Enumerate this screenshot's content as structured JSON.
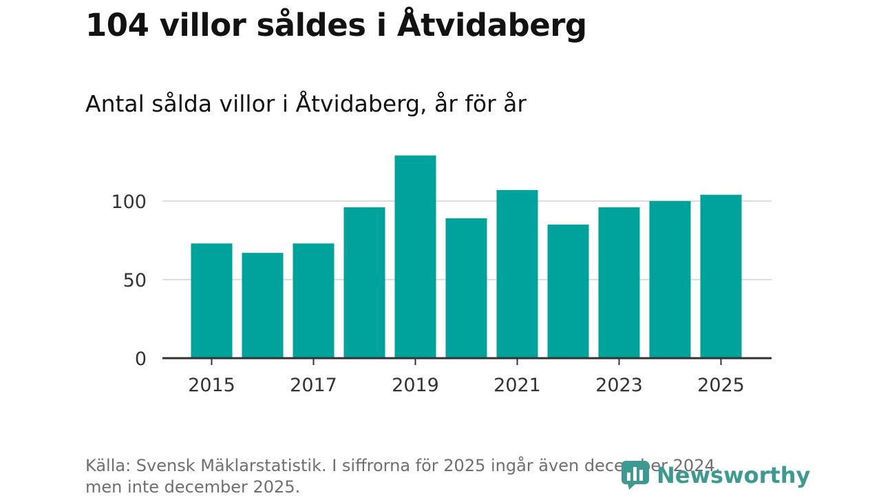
{
  "title": "104 villor såldes i Åtvidaberg",
  "subtitle": "Antal sålda villor i Åtvidaberg, år för år",
  "source": "Källa: Svensk Mäklarstatistik. I siffrorna för 2025 ingår även december 2024, men inte december 2025.",
  "logo": {
    "name": "Newsworthy",
    "icon": "newsworthy-chart-icon"
  },
  "colors": {
    "bar": "#00a39b",
    "grid": "#dcdcdc",
    "axis": "#333333"
  },
  "chart_data": {
    "type": "bar",
    "title": "Antal sålda villor i Åtvidaberg, år för år",
    "xlabel": "",
    "ylabel": "",
    "categories": [
      "2015",
      "2016",
      "2017",
      "2018",
      "2019",
      "2020",
      "2021",
      "2022",
      "2023",
      "2024",
      "2025"
    ],
    "values": [
      73,
      67,
      73,
      96,
      129,
      89,
      107,
      85,
      96,
      100,
      104
    ],
    "ylim": [
      0,
      135
    ],
    "y_ticks": [
      0,
      50,
      100
    ],
    "x_tick_labels": [
      "2015",
      "2017",
      "2019",
      "2021",
      "2023",
      "2025"
    ],
    "grid": true,
    "legend": "none"
  }
}
